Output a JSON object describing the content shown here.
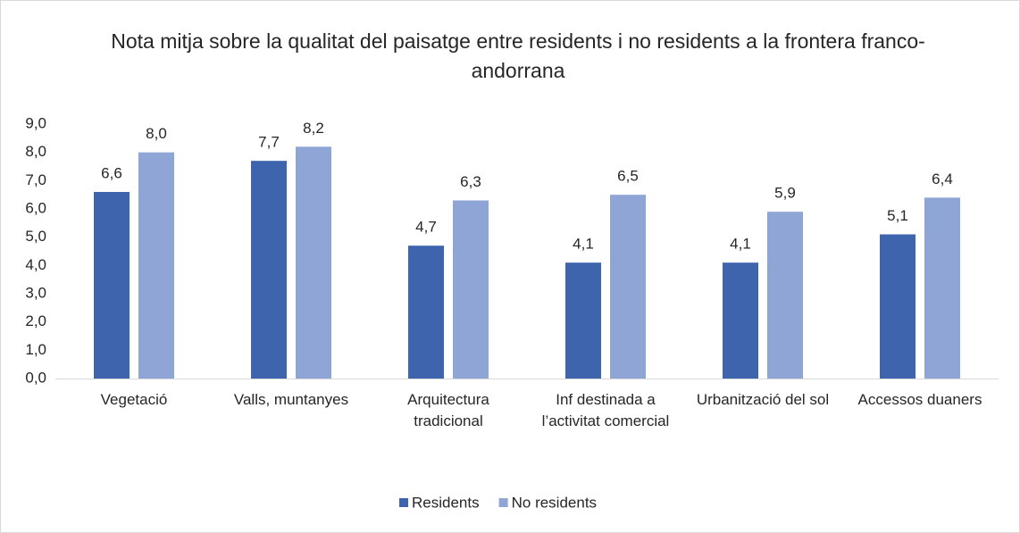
{
  "chart_data": {
    "type": "bar",
    "title": "Nota mitja sobre la qualitat del paisatge entre residents i no residents a la frontera franco-andorrana",
    "categories": [
      "Vegetació",
      "Valls, muntanyes",
      "Arquitectura tradicional",
      "Inf destinada a l’activitat comercial",
      "Urbanització del sol",
      "Accessos duaners"
    ],
    "series": [
      {
        "name": "Residents",
        "color": "#3f64ae",
        "values": [
          6.6,
          7.7,
          4.7,
          4.1,
          4.1,
          5.1
        ],
        "value_labels": [
          "6,6",
          "7,7",
          "4,7",
          "4,1",
          "4,1",
          "5,1"
        ]
      },
      {
        "name": "No residents",
        "color": "#8fa5d6",
        "values": [
          8.0,
          8.2,
          6.3,
          6.5,
          5.9,
          6.4
        ],
        "value_labels": [
          "8,0",
          "8,2",
          "6,3",
          "6,5",
          "5,9",
          "6,4"
        ]
      }
    ],
    "ylim": [
      0,
      9
    ],
    "yticks": [
      {
        "value": 0,
        "label": "0,0"
      },
      {
        "value": 1,
        "label": "1,0"
      },
      {
        "value": 2,
        "label": "2,0"
      },
      {
        "value": 3,
        "label": "3,0"
      },
      {
        "value": 4,
        "label": "4,0"
      },
      {
        "value": 5,
        "label": "5,0"
      },
      {
        "value": 6,
        "label": "6,0"
      },
      {
        "value": 7,
        "label": "7,0"
      },
      {
        "value": 8,
        "label": "8,0"
      },
      {
        "value": 9,
        "label": "9,0"
      }
    ],
    "grid": false,
    "legend": "bottom"
  }
}
